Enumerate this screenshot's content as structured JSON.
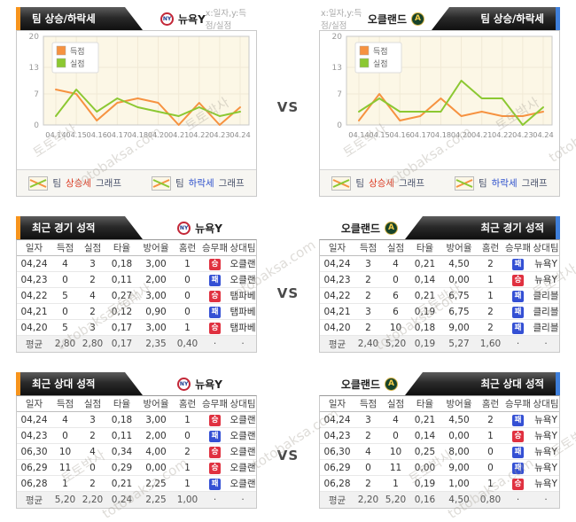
{
  "vs_label": "VS",
  "watermark": {
    "korean": "토토박사",
    "domain": "totobaksa.com"
  },
  "teams": {
    "left": {
      "name": "뉴욕Y",
      "logo_glyph": "NY"
    },
    "right": {
      "name": "오클랜드",
      "logo_glyph": "A"
    }
  },
  "chart_section": {
    "title": "팀 상승/하락세",
    "axis_note": "x:일자,y:득점/실점",
    "footer": {
      "team_word": "팀",
      "rise_word": "상승세",
      "fall_word": "하락세",
      "graph_word": "그래프"
    }
  },
  "chart_data": [
    {
      "type": "line",
      "team": "뉴욕Y",
      "title": "팀 상승/하락세",
      "x": [
        "04.14",
        "04.15",
        "04.16",
        "04.17",
        "04.18",
        "04.20",
        "04.21",
        "04.22",
        "04.23",
        "04.24"
      ],
      "ylim": [
        0,
        20
      ],
      "yticks": [
        0,
        7,
        13,
        20
      ],
      "grid": true,
      "legend_position": "top-left",
      "series": [
        {
          "name": "득점",
          "color": "#f69240",
          "values": [
            8,
            7,
            1,
            5,
            6,
            5,
            0,
            5,
            0,
            4
          ]
        },
        {
          "name": "실점",
          "color": "#8cc832",
          "values": [
            2,
            8,
            3,
            6,
            4,
            3,
            2,
            4,
            2,
            3
          ]
        }
      ]
    },
    {
      "type": "line",
      "team": "오클랜드",
      "title": "팀 상승/하락세",
      "x": [
        "04.14",
        "04.15",
        "04.16",
        "04.17",
        "04.18",
        "04.20",
        "04.21",
        "04.22",
        "04.23",
        "04.24"
      ],
      "ylim": [
        0,
        20
      ],
      "yticks": [
        0,
        7,
        13,
        20
      ],
      "grid": true,
      "legend_position": "top-left",
      "series": [
        {
          "name": "득점",
          "color": "#f69240",
          "values": [
            1,
            7,
            1,
            2,
            6,
            2,
            3,
            2,
            2,
            3
          ]
        },
        {
          "name": "실점",
          "color": "#8cc832",
          "values": [
            3,
            6,
            3,
            3,
            3,
            10,
            6,
            6,
            0,
            4
          ]
        }
      ]
    }
  ],
  "recent_section": {
    "title": "최근 경기 성적",
    "columns": [
      "일자",
      "득점",
      "실점",
      "타율",
      "방어율",
      "홈런",
      "승무패",
      "상대팀"
    ],
    "left": {
      "rows": [
        {
          "date": "04,24",
          "score": "4",
          "concede": "3",
          "batting": "0,18",
          "era": "3,00",
          "hr": "1",
          "result": "승",
          "result_type": "win",
          "opponent": "오클랜"
        },
        {
          "date": "04,23",
          "score": "0",
          "concede": "2",
          "batting": "0,11",
          "era": "2,00",
          "hr": "0",
          "result": "패",
          "result_type": "loss",
          "opponent": "오클랜"
        },
        {
          "date": "04,22",
          "score": "5",
          "concede": "4",
          "batting": "0,27",
          "era": "3,00",
          "hr": "0",
          "result": "승",
          "result_type": "win",
          "opponent": "탬파베"
        },
        {
          "date": "04,21",
          "score": "0",
          "concede": "2",
          "batting": "0,12",
          "era": "0,90",
          "hr": "0",
          "result": "패",
          "result_type": "loss",
          "opponent": "탬파베"
        },
        {
          "date": "04,20",
          "score": "5",
          "concede": "3",
          "batting": "0,17",
          "era": "3,00",
          "hr": "1",
          "result": "승",
          "result_type": "win",
          "opponent": "탬파베"
        }
      ],
      "avg": {
        "date": "평균",
        "score": "2,80",
        "concede": "2,80",
        "batting": "0,17",
        "era": "2,35",
        "hr": "0,40",
        "result": "·",
        "result_type": "none",
        "opponent": "·"
      }
    },
    "right": {
      "rows": [
        {
          "date": "04,24",
          "score": "3",
          "concede": "4",
          "batting": "0,21",
          "era": "4,50",
          "hr": "2",
          "result": "패",
          "result_type": "loss",
          "opponent": "뉴욕Y"
        },
        {
          "date": "04,23",
          "score": "2",
          "concede": "0",
          "batting": "0,14",
          "era": "0,00",
          "hr": "1",
          "result": "승",
          "result_type": "win",
          "opponent": "뉴욕Y"
        },
        {
          "date": "04,22",
          "score": "2",
          "concede": "6",
          "batting": "0,21",
          "era": "6,75",
          "hr": "1",
          "result": "패",
          "result_type": "loss",
          "opponent": "클리블"
        },
        {
          "date": "04,21",
          "score": "3",
          "concede": "6",
          "batting": "0,19",
          "era": "6,75",
          "hr": "2",
          "result": "패",
          "result_type": "loss",
          "opponent": "클리블"
        },
        {
          "date": "04,20",
          "score": "2",
          "concede": "10",
          "batting": "0,18",
          "era": "9,00",
          "hr": "2",
          "result": "패",
          "result_type": "loss",
          "opponent": "클리블"
        }
      ],
      "avg": {
        "date": "평균",
        "score": "2,40",
        "concede": "5,20",
        "batting": "0,19",
        "era": "5,27",
        "hr": "1,60",
        "result": "·",
        "result_type": "none",
        "opponent": "·"
      }
    }
  },
  "h2h_section": {
    "title": "최근 상대 성적",
    "columns": [
      "일자",
      "득점",
      "실점",
      "타율",
      "방어율",
      "홈런",
      "승무패",
      "상대팀"
    ],
    "left": {
      "rows": [
        {
          "date": "04,24",
          "score": "4",
          "concede": "3",
          "batting": "0,18",
          "era": "3,00",
          "hr": "1",
          "result": "승",
          "result_type": "win",
          "opponent": "오클랜"
        },
        {
          "date": "04,23",
          "score": "0",
          "concede": "2",
          "batting": "0,11",
          "era": "2,00",
          "hr": "0",
          "result": "패",
          "result_type": "loss",
          "opponent": "오클랜"
        },
        {
          "date": "06,30",
          "score": "10",
          "concede": "4",
          "batting": "0,34",
          "era": "4,00",
          "hr": "2",
          "result": "승",
          "result_type": "win",
          "opponent": "오클랜"
        },
        {
          "date": "06,29",
          "score": "11",
          "concede": "0",
          "batting": "0,29",
          "era": "0,00",
          "hr": "1",
          "result": "승",
          "result_type": "win",
          "opponent": "오클랜"
        },
        {
          "date": "06,28",
          "score": "1",
          "concede": "2",
          "batting": "0,21",
          "era": "2,25",
          "hr": "1",
          "result": "패",
          "result_type": "loss",
          "opponent": "오클랜"
        }
      ],
      "avg": {
        "date": "평균",
        "score": "5,20",
        "concede": "2,20",
        "batting": "0,24",
        "era": "2,25",
        "hr": "1,00",
        "result": "·",
        "result_type": "none",
        "opponent": "·"
      }
    },
    "right": {
      "rows": [
        {
          "date": "04,24",
          "score": "3",
          "concede": "4",
          "batting": "0,21",
          "era": "4,50",
          "hr": "2",
          "result": "패",
          "result_type": "loss",
          "opponent": "뉴욕Y"
        },
        {
          "date": "04,23",
          "score": "2",
          "concede": "0",
          "batting": "0,14",
          "era": "0,00",
          "hr": "1",
          "result": "승",
          "result_type": "win",
          "opponent": "뉴욕Y"
        },
        {
          "date": "06,30",
          "score": "4",
          "concede": "10",
          "batting": "0,25",
          "era": "8,00",
          "hr": "0",
          "result": "패",
          "result_type": "loss",
          "opponent": "뉴욕Y"
        },
        {
          "date": "06,29",
          "score": "0",
          "concede": "11",
          "batting": "0,00",
          "era": "9,00",
          "hr": "0",
          "result": "패",
          "result_type": "loss",
          "opponent": "뉴욕Y"
        },
        {
          "date": "06,28",
          "score": "2",
          "concede": "1",
          "batting": "0,19",
          "era": "1,00",
          "hr": "1",
          "result": "승",
          "result_type": "win",
          "opponent": "뉴욕Y"
        }
      ],
      "avg": {
        "date": "평균",
        "score": "2,20",
        "concede": "5,20",
        "batting": "0,16",
        "era": "4,50",
        "hr": "0,80",
        "result": "·",
        "result_type": "none",
        "opponent": "·"
      }
    }
  },
  "colors": {
    "accent_orange": "#f7941d",
    "accent_blue": "#3e7fdb",
    "score_line": "#f69240",
    "concede_line": "#8cc832",
    "win_badge": "#e03140",
    "loss_badge": "#3450d4",
    "chart_bg": "#fcf7e6"
  }
}
